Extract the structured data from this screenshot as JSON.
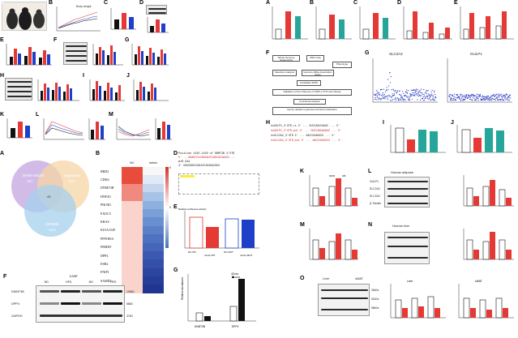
{
  "left_panel_letters": [
    "A",
    "B",
    "C",
    "D",
    "E",
    "F",
    "G",
    "H",
    "I",
    "J",
    "K",
    "L",
    "M"
  ],
  "right_panel_letters": [
    "A",
    "B",
    "C",
    "D",
    "E",
    "F",
    "G",
    "H",
    "I",
    "J",
    "K",
    "L",
    "M",
    "N",
    "O"
  ],
  "left_bottom_letters": [
    "A",
    "B",
    "C",
    "D",
    "E",
    "F",
    "G"
  ],
  "legend": {
    "nc": "NC",
    "hfd": "HFD",
    "hfd_mir": "HFD+miR-7"
  },
  "labels": {
    "body_weight": "Body weight",
    "fold_change": "Fold change",
    "relative_expr": "Relative expression",
    "auc": "AUC"
  },
  "venn": {
    "set1": "DIANA-MicroT",
    "set1_count": "857",
    "set2": "TargetScan",
    "set2_count": "1128",
    "set3": "miRWalk",
    "set3_count": "3334",
    "overlap": "43"
  },
  "heatmap": {
    "genes": [
      "BRD2",
      "CDK6",
      "DNMT3B",
      "HNF4G",
      "PIK3R1",
      "EXOC5",
      "KRAS",
      "KIAA1549",
      "PPP1R9A",
      "FRMD5",
      "DPP4",
      "ESR2",
      "FNIP1",
      "SAMD5",
      "ZNF385D"
    ],
    "col_nc": "NC",
    "col_mimic": "mimic",
    "scale_max": "5",
    "scale_mid": "0"
  },
  "sequence": {
    "pos_label": "Position 1425-1430 of DNMT3B 3'UTR",
    "pos_seq": "5' ...GGAGCCUCAGGAUCCAGCACUAUUC...",
    "mir_label": "miR-34a",
    "mir_seq": "3' UGUUGGUCGAUUCUGUGACGGU"
  },
  "bar_e": {
    "title": "Relative luciferase activity",
    "categories": [
      "NC-WT",
      "mimic-WT",
      "NC-MUT",
      "mimic-MUT"
    ]
  },
  "blot_f": {
    "title": "Liver",
    "groups": [
      "ND",
      "HFD",
      "ND",
      "HFD"
    ],
    "rows": [
      "DNMT3B",
      "DPP4",
      "GAPDH"
    ],
    "sizes": [
      "100kD",
      "88kD",
      "37kD"
    ]
  },
  "bar_g": {
    "legend": [
      "ND",
      "HFD"
    ],
    "ylabel": "Relative abundance",
    "categories": [
      "DNMT3B",
      "DPP4"
    ]
  },
  "flow_f": {
    "boxes": [
      "Whole Genome Sequencing",
      "SNP array",
      "Phenotype",
      "Selection analysis",
      "Genome-Wide Association Study",
      "Candidate SNPs",
      "Validation of the influence of SNPs in PTs and obesity",
      "Functional analysis",
      "Genes related to glucose and lipid metabolism"
    ]
  },
  "manhattan": {
    "left": "SLC2A2",
    "right": "GULP1"
  },
  "seq_h": {
    "lines": [
      "hsGULP1_3'UTR_rs 3' ... GUCCAGUCAGAC ... 5'",
      "hsGULP1_3'UTR_mut 3' ... GUCCAGUAAGAC ... 5'",
      "hsSLC2A2_3'UTR 5' ... AACCUUAGGCU ... 3'",
      "hsSLC2A2_3'UTR_mut 5' ... AACCUUUUGCU ... 3'"
    ]
  },
  "right_bars": {
    "nnw": "NNW",
    "ob": "OB",
    "human_adipose": "Human adipose",
    "human_liver": "Human liver",
    "liver": "Liver",
    "swat": "sWAT",
    "nc": "NC",
    "hfd": "HFD",
    "genes": [
      "GULP1",
      "SLC2A2",
      "β-Tubulin"
    ],
    "sizes": [
      "34kDa",
      "61kDa",
      "55kDa"
    ]
  },
  "colors": {
    "black": "#111111",
    "red": "#e53935",
    "teal": "#26a69a",
    "blue": "#1e40c8",
    "pink": "#f48fb1"
  }
}
